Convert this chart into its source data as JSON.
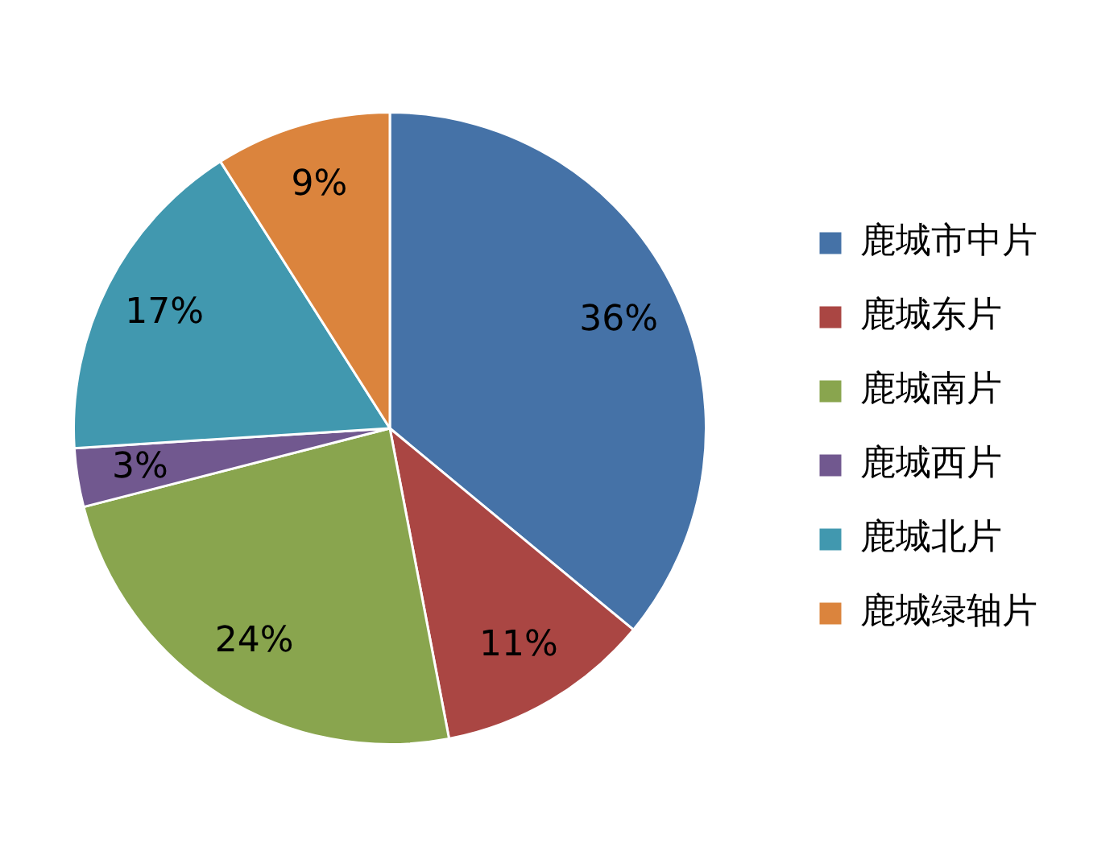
{
  "chart_data": {
    "type": "pie",
    "categories": [
      "鹿城市中片",
      "鹿城东片",
      "鹿城南片",
      "鹿城西片",
      "鹿城北片",
      "鹿城绿轴片"
    ],
    "values": [
      36,
      11,
      24,
      3,
      17,
      9
    ],
    "value_labels": [
      "36%",
      "11%",
      "24%",
      "3%",
      "17%",
      "9%"
    ],
    "colors": [
      "#4572a7",
      "#aa4643",
      "#89a54e",
      "#71588f",
      "#4198af",
      "#db843d"
    ],
    "legend": "right"
  }
}
